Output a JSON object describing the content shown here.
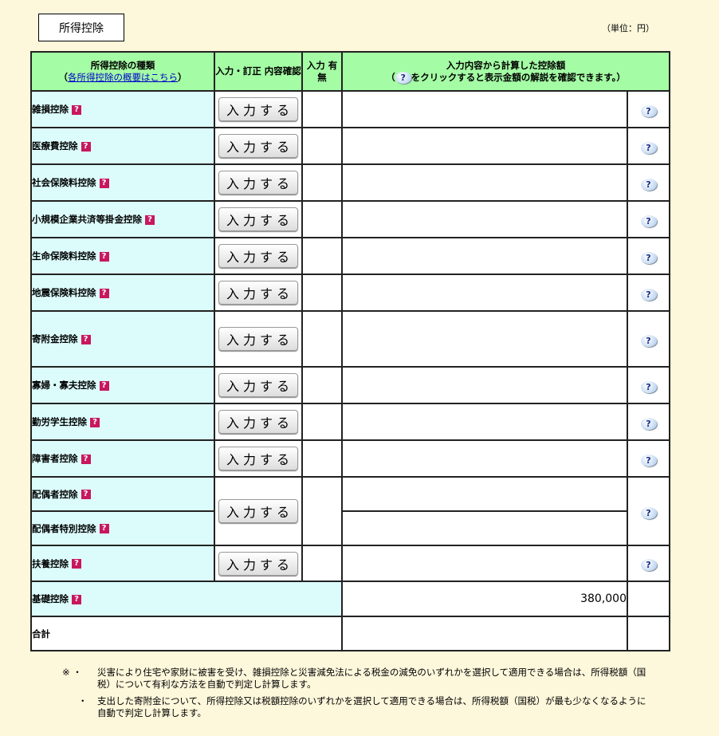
{
  "title": "所得控除",
  "unit": "（単位：円）",
  "header": {
    "col1_line1": "所得控除の種類",
    "col1_link": "各所得控除の概要はこちら",
    "col2": "入力・訂正 内容確認",
    "col3": "入力 有無",
    "col4_line1": "入力内容から計算した控除額",
    "col4_line2": "をクリックすると表示金額の解説を確認できます。"
  },
  "button_label": "入力する",
  "rows": [
    {
      "label": "雑損控除"
    },
    {
      "label": "医療費控除"
    },
    {
      "label": "社会保険料控除"
    },
    {
      "label": "小規模企業共済等掛金控除"
    },
    {
      "label": "生命保険料控除"
    },
    {
      "label": "地震保険料控除"
    },
    {
      "label": "寄附金控除"
    },
    {
      "label": "寡婦・寡夫控除"
    },
    {
      "label": "勤労学生控除"
    },
    {
      "label": "障害者控除"
    },
    {
      "label": "配偶者控除"
    },
    {
      "label": "配偶者特別控除"
    },
    {
      "label": "扶養控除"
    }
  ],
  "basic": {
    "label": "基礎控除",
    "amount": "380,000"
  },
  "total": {
    "label": "合計",
    "amount": ""
  },
  "notes": [
    {
      "mark": "※ ・",
      "text": "災害により住宅や家財に被害を受け、雑損控除と災害減免法による税金の減免のいずれかを選択して適用できる場合は、所得税額（国税）について有利な方法を自動で判定し計算します。"
    },
    {
      "mark": "・",
      "text": "支出した寄附金について、所得控除又は税額控除のいずれかを選択して適用できる場合は、所得税額（国税）が最も少なくなるように自動で判定し計算します。"
    }
  ]
}
